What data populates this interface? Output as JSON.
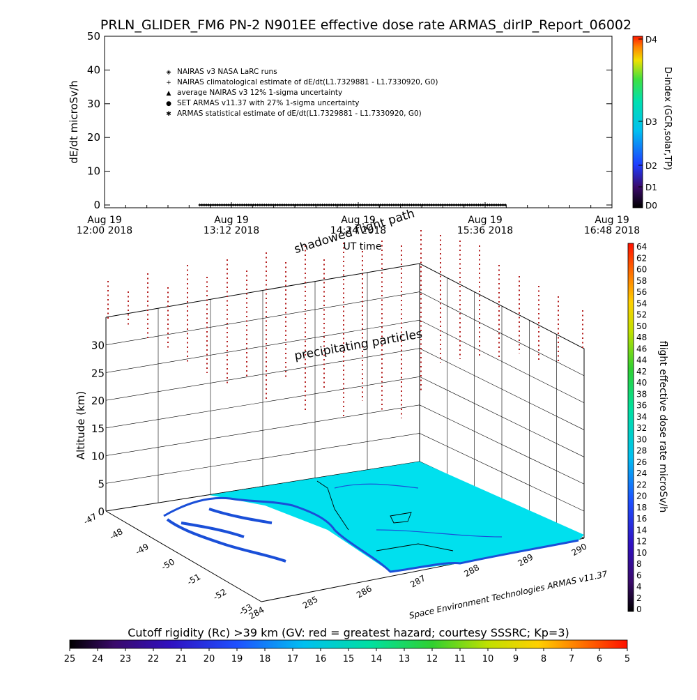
{
  "title": "PRLN_GLIDER_FM6 PN-2 N901EE effective dose rate ARMAS_dirIP_Report_06002",
  "chart_data": [
    {
      "type": "scatter",
      "ylabel": "dE/dt microSv/h",
      "xlabel": "UT time",
      "ylim": [
        0,
        50
      ],
      "yticks": [
        "0",
        "10",
        "20",
        "30",
        "40",
        "50"
      ],
      "xticks": [
        {
          "l1": "Aug 19",
          "l2": "12:00 2018"
        },
        {
          "l1": "Aug 19",
          "l2": "13:12 2018"
        },
        {
          "l1": "Aug 19",
          "l2": "14:24 2018"
        },
        {
          "l1": "Aug 19",
          "l2": "15:36 2018"
        },
        {
          "l1": "Aug 19",
          "l2": "16:48 2018"
        }
      ],
      "legend": [
        {
          "symbol": "◈",
          "label": "NAIRAS v3 NASA LaRC runs"
        },
        {
          "symbol": "+",
          "label": "NAIRAS climatological estimate of dE/dt(L1.7329881 - L1.7330920, G0)"
        },
        {
          "symbol": "▲",
          "label": "average NAIRAS v3 12% 1-sigma uncertainty"
        },
        {
          "symbol": "●",
          "label": "SET ARMAS v11.37 with 27% 1-sigma uncertainty"
        },
        {
          "symbol": "✱",
          "label": "ARMAS statistical estimate of dE/dt(L1.7329881 - L1.7330920, G0)"
        }
      ],
      "legend_position": "top-left",
      "series_time_range": [
        "12:54",
        "15:48"
      ],
      "series_value": 0,
      "dindex": {
        "label": "D-index (GCR,solar,TP)",
        "ticks": [
          "D0",
          "D1",
          "D2",
          "D3",
          "D4"
        ]
      }
    },
    {
      "type": "scatter3d",
      "zlabel": "Altitude (km)",
      "zticks": [
        "0",
        "5",
        "10",
        "15",
        "20",
        "25",
        "30"
      ],
      "lat_ticks": [
        "-47",
        "-48",
        "-49",
        "-50",
        "-51",
        "-52",
        "-53"
      ],
      "lon_ticks": [
        "284",
        "285",
        "286",
        "287",
        "288",
        "289",
        "290"
      ],
      "annotations": [
        "shadowed flight path",
        "precipitating particles"
      ],
      "credit": "Space Environment Technologies ARMAS v11.37",
      "colorbar": {
        "label": "flight effective dose rate microSv/h",
        "ticks": [
          "0",
          "2",
          "4",
          "6",
          "8",
          "10",
          "12",
          "14",
          "16",
          "18",
          "20",
          "22",
          "24",
          "26",
          "28",
          "30",
          "32",
          "34",
          "36",
          "38",
          "40",
          "42",
          "44",
          "46",
          "48",
          "50",
          "52",
          "54",
          "56",
          "58",
          "60",
          "62",
          "64"
        ]
      },
      "particle_color": "#b41e1e",
      "terrain_color": "#00e0ee",
      "coast_color": "#1a4fd8"
    },
    {
      "type": "colorbar",
      "title": "Cutoff rigidity (Rc) >39 km (GV: red = greatest hazard; courtesy SSSRC; Kp=3)",
      "ticks": [
        "25",
        "24",
        "23",
        "22",
        "21",
        "20",
        "19",
        "18",
        "17",
        "16",
        "15",
        "14",
        "13",
        "12",
        "11",
        "10",
        "9",
        "8",
        "7",
        "6",
        "5"
      ]
    }
  ]
}
